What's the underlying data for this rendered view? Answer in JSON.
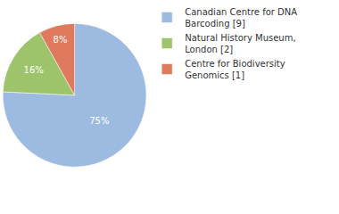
{
  "chart_data": {
    "type": "pie",
    "categories": [
      "Canadian Centre for DNA Barcoding [9]",
      "Natural History Museum, London [2]",
      "Centre for Biodiversity Genomics [1]"
    ],
    "values": [
      75,
      16,
      8
    ],
    "value_labels": [
      "75%",
      "16%",
      "8%"
    ],
    "colors": [
      "#9dbbe0",
      "#9dc46b",
      "#e07a5f"
    ],
    "data_labels": true,
    "legend": "right"
  }
}
